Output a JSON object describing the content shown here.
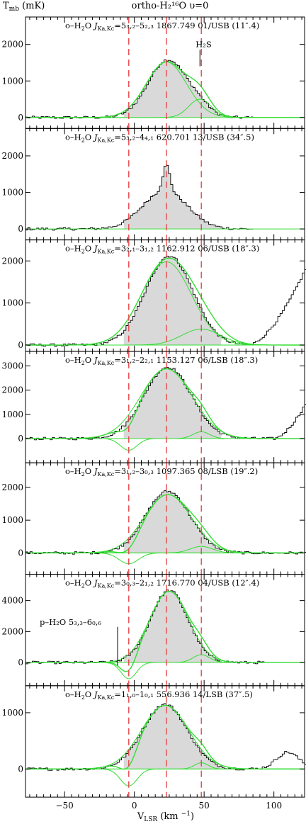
{
  "figure": {
    "title": "ortho-H₂¹⁶O  υ=0",
    "ylabel": "T_mb  (mK)",
    "xlabel": "V_LSR (km ⁻¹)"
  },
  "chart_data": {
    "type": "line",
    "x_range": [
      -78,
      122
    ],
    "x_ticks": [
      -50,
      0,
      50,
      100
    ],
    "vertical_reference_lines_kms": [
      -4,
      23,
      48
    ],
    "grid": false,
    "fill_color": "#d9d9d9",
    "fit_color": "#33dd33",
    "reference_line_color": "#e8474a",
    "panels": [
      {
        "label": "o–H₂O  J(Ka,Kc)=5(3,2)–5(2,3)   1867.749 01/USB (11″.4)",
        "transition": "5₃,₂–5₂,₃",
        "frequency_ghz": "1867.749",
        "band": "01/USB",
        "beam": "11″.4",
        "ylim": [
          -300,
          2750
        ],
        "y_ticks": [
          0,
          1000,
          2000
        ],
        "emission": {
          "v0": 24,
          "sigma": 14,
          "peak": 1580
        },
        "fits": [
          {
            "name": "main",
            "v0": 23,
            "sigma": 14.5,
            "amp": 1520
          },
          {
            "name": "H2S",
            "v0": 47,
            "sigma": 8,
            "amp": 500
          }
        ],
        "extra": {
          "name": "H2S",
          "v0": 47,
          "sigma": 8,
          "amp": 500
        },
        "annotation": {
          "text": "H₂S",
          "v": 47,
          "y_top": 1850,
          "y_bottom": 1400
        },
        "data_range": [
          -78,
          84
        ]
      },
      {
        "label": "o–H₂O  J(Ka,Kc)=5(3,2)–4(4,1)   620.701 13/USB (34″.5)",
        "transition": "5₃,₂–4₄,₁",
        "frequency_ghz": "620.701",
        "band": "13/USB",
        "beam": "34″.5",
        "ylim": [
          -300,
          2750
        ],
        "y_ticks": [
          0,
          1000,
          2000
        ],
        "emission": {
          "v0": 22,
          "sigma": 16,
          "peak": 1050
        },
        "spike": {
          "v0": 23,
          "sigma": 2.5,
          "amp": 700
        },
        "fits": [],
        "data_range": [
          -78,
          84
        ]
      },
      {
        "label": "o–H₂O  J(Ka,Kc)=3(2,1)–3(1,2)   1162.912 06/USB (18″.3)",
        "transition": "3₂,₁–3₁,₂",
        "frequency_ghz": "1162.912",
        "band": "06/USB",
        "beam": "18″.3",
        "ylim": [
          -150,
          2500
        ],
        "y_ticks": [
          0,
          1000,
          2000
        ],
        "emission": {
          "v0": 25,
          "sigma": 17,
          "peak": 2120
        },
        "fits": [
          {
            "name": "main",
            "v0": 23,
            "sigma": 18,
            "amp": 1980
          },
          {
            "name": "wing",
            "v0": 48,
            "sigma": 14,
            "amp": 380
          }
        ],
        "rise": {
          "start": 82,
          "end": 122,
          "to": 1750
        },
        "data_range": [
          -78,
          122
        ]
      },
      {
        "label": "o–H₂O  J(Ka,Kc)=3(1,2)–2(2,1)   1153.127 06/LSB (18″.3)",
        "transition": "3₁,₂–2₂,₁",
        "frequency_ghz": "1153.127",
        "band": "06/LSB",
        "beam": "18″.3",
        "ylim": [
          -1000,
          3600
        ],
        "y_ticks": [
          0,
          1000,
          2000,
          3000
        ],
        "emission": {
          "v0": 24,
          "sigma": 17,
          "peak": 2950
        },
        "fits": [
          {
            "name": "main",
            "v0": 23,
            "sigma": 18.5,
            "amp": 2880
          },
          {
            "name": "absorption",
            "v0": -4,
            "sigma": 6,
            "amp": -480
          },
          {
            "name": "wing",
            "v0": 48,
            "sigma": 6,
            "amp": 280
          }
        ],
        "rise": {
          "start": 100,
          "end": 122,
          "to": 1350
        },
        "data_range": [
          -78,
          122
        ]
      },
      {
        "label": "o–H₂O  J(Ka,Kc)=3(1,2)–3(0,3)   1097.365 08/LSB (19″.2)",
        "transition": "3₁,₂–3₀,₃",
        "frequency_ghz": "1097.365",
        "band": "08/LSB",
        "beam": "19″.2",
        "ylim": [
          -650,
          2750
        ],
        "y_ticks": [
          0,
          1000,
          2000
        ],
        "emission": {
          "v0": 24,
          "sigma": 16,
          "peak": 1880
        },
        "fits": [
          {
            "name": "main",
            "v0": 24,
            "sigma": 17,
            "amp": 1780
          },
          {
            "name": "absorption",
            "v0": -4,
            "sigma": 7,
            "amp": -330
          },
          {
            "name": "wing",
            "v0": 48,
            "sigma": 8,
            "amp": 200
          }
        ],
        "data_range": [
          -78,
          122
        ]
      },
      {
        "label": "o–H₂O  J(Ka,Kc)=3(0,3)–2(1,2)   1716.770 04/USB (12″.4)",
        "transition": "3₀,₃–2₁,₂",
        "frequency_ghz": "1716.770",
        "band": "04/USB",
        "beam": "12″.4",
        "ylim": [
          -1500,
          5700
        ],
        "y_ticks": [
          0,
          2000,
          4000
        ],
        "emission": {
          "v0": 25,
          "sigma": 13.5,
          "peak": 4650
        },
        "fits": [
          {
            "name": "main",
            "v0": 25,
            "sigma": 14,
            "amp": 4600
          },
          {
            "name": "absorption",
            "v0": -4,
            "sigma": 5.5,
            "amp": -1050
          },
          {
            "name": "wing",
            "v0": 48,
            "sigma": 6,
            "amp": 500
          }
        ],
        "annotation": {
          "text": "p–H₂O 5₃,₃–6₀,₆",
          "v": -12,
          "y_top": 2300,
          "y_bottom": -200
        },
        "data_range": [
          -78,
          92
        ]
      },
      {
        "label": "o–H₂O  J(Ka,Kc)=1(1,0)–1(0,1)   556.936 14/LSB (37″.5)",
        "transition": "1₁,₀–1₀,₁",
        "frequency_ghz": "556.936",
        "band": "14/LSB",
        "beam": "37″.5",
        "ylim": [
          -500,
          1480
        ],
        "y_ticks": [
          0,
          1000
        ],
        "emission": {
          "v0": 22,
          "sigma": 16,
          "peak": 1150
        },
        "fits": [
          {
            "name": "main",
            "v0": 22,
            "sigma": 17,
            "amp": 1130
          },
          {
            "name": "absorption",
            "v0": -4,
            "sigma": 6,
            "amp": -300
          },
          {
            "name": "wing",
            "v0": 48,
            "sigma": 5,
            "amp": 110
          }
        ],
        "bump": {
          "v0": 110,
          "sigma": 8,
          "amp": 300
        },
        "data_range": [
          -78,
          122
        ]
      }
    ]
  }
}
